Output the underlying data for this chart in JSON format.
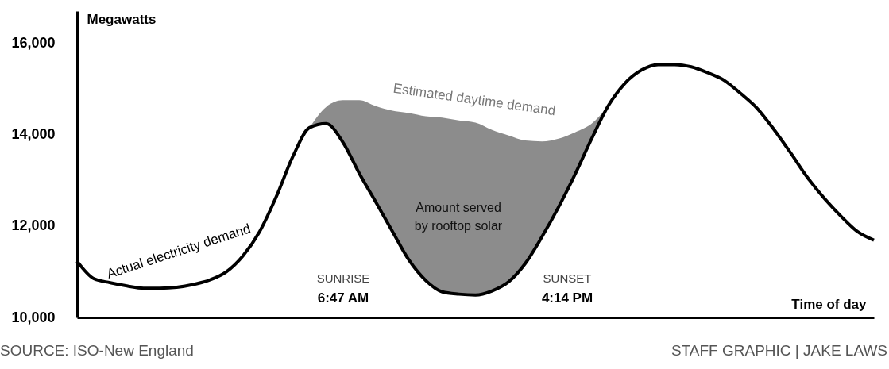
{
  "chart_data": {
    "type": "line",
    "ylabel": "Megawatts",
    "xlabel": "Time of day",
    "categories": [
      null,
      null,
      null,
      null,
      null,
      null,
      null,
      null,
      null,
      null,
      null,
      null,
      null,
      null,
      null,
      null,
      null,
      null,
      null,
      null,
      null,
      null,
      null,
      null,
      null,
      null,
      null,
      null,
      null,
      null,
      null,
      null,
      null,
      null,
      null,
      null,
      null,
      null,
      null,
      null,
      null,
      null,
      null,
      null,
      null,
      null,
      null,
      null,
      null
    ],
    "series": [
      {
        "name": "Actual electricity demand",
        "color": "#000000",
        "values": [
          11230,
          10850,
          10760,
          10690,
          10640,
          10640,
          10660,
          10720,
          10820,
          11000,
          11350,
          11880,
          12640,
          13520,
          14150,
          14240,
          13840,
          13150,
          12520,
          11880,
          11250,
          10810,
          10560,
          10510,
          10490,
          10580,
          10780,
          11180,
          11760,
          12410,
          13130,
          13910,
          14630,
          15120,
          15410,
          15530,
          15530,
          15480,
          15350,
          15180,
          14890,
          14560,
          14100,
          13590,
          13060,
          12610,
          12220,
          11880,
          11690
        ]
      },
      {
        "name": "Estimated daytime demand",
        "type": "area",
        "color": "#8c8c8c",
        "values": [
          null,
          null,
          null,
          null,
          null,
          null,
          null,
          null,
          null,
          null,
          null,
          null,
          null,
          null,
          14150,
          14600,
          14750,
          14750,
          14620,
          14520,
          14470,
          14400,
          14370,
          14310,
          14260,
          14100,
          13980,
          13870,
          13850,
          13910,
          14050,
          14240,
          14630,
          null,
          null,
          null,
          null,
          null,
          null,
          null,
          null,
          null,
          null,
          null,
          null,
          null,
          null,
          null,
          null
        ]
      }
    ],
    "ylim": [
      10000,
      16700
    ],
    "yticks": [
      {
        "value": 10000,
        "label": "10,000"
      },
      {
        "value": 12000,
        "label": "12,000"
      },
      {
        "value": 14000,
        "label": "14,000"
      },
      {
        "value": 16000,
        "label": "16,000"
      }
    ],
    "tick_labels": "y",
    "annotations": [
      "SUNRISE",
      "6:47 AM",
      "SUNSET",
      "4:14 PM",
      "Amount served",
      "by rooftop solar",
      "SOURCE: ISO-New England",
      "STAFF GRAPHIC | JAKE LAWS"
    ]
  }
}
